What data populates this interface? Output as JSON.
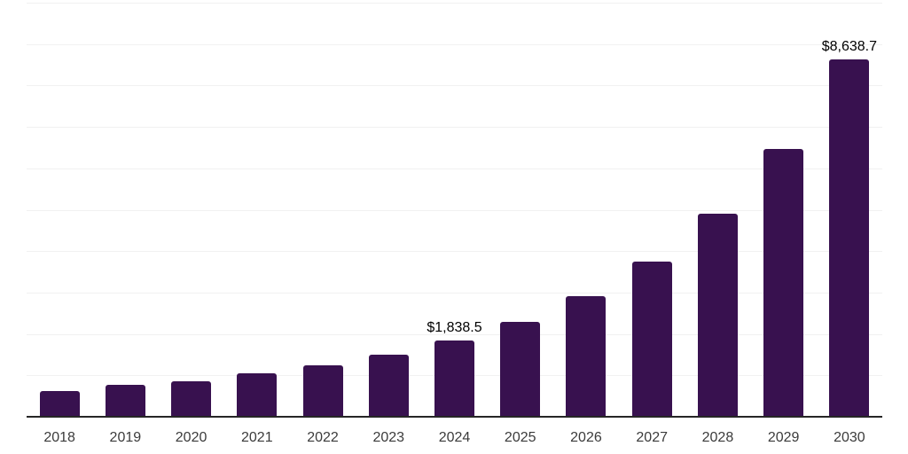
{
  "chart_data": {
    "type": "bar",
    "title": "",
    "xlabel": "",
    "ylabel": "",
    "categories": [
      "2018",
      "2019",
      "2020",
      "2021",
      "2022",
      "2023",
      "2024",
      "2025",
      "2026",
      "2027",
      "2028",
      "2029",
      "2030"
    ],
    "values": [
      630,
      770,
      860,
      1040,
      1250,
      1490,
      1838.5,
      2290,
      2910,
      3740,
      4900,
      6470,
      8638.7
    ],
    "point_labels": [
      "",
      "",
      "",
      "",
      "",
      "",
      "$1,838.5",
      "",
      "",
      "",
      "",
      "",
      "$8,638.7"
    ],
    "ylim": [
      0,
      10000
    ],
    "gridline_interval": 1000,
    "grid": true,
    "legend": false,
    "y_axis_tick_labels_visible": false,
    "colors": {
      "bar": "#38114F",
      "axis_line": "#262626",
      "gridline": "#F1F1F1",
      "tick_label": "#3B3B3B",
      "value_label": "#000000",
      "background": "#FFFFFF"
    }
  }
}
